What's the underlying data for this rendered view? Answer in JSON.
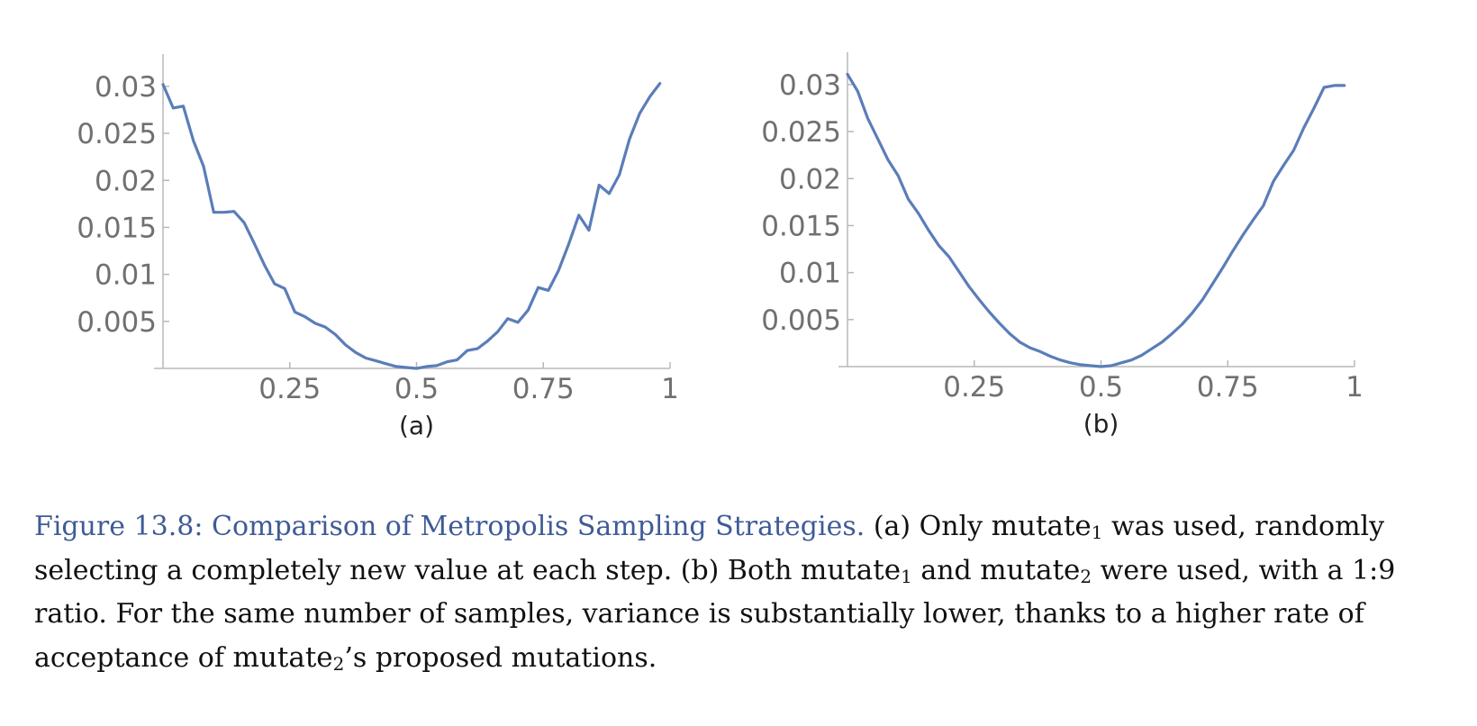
{
  "colors": {
    "line": "#5b7db8",
    "caption_title": "#3f5b96"
  },
  "chart_data": [
    {
      "type": "line",
      "panel_label": "(a)",
      "xlim": [
        0,
        1
      ],
      "ylim": [
        0,
        0.032
      ],
      "x_ticks": [
        {
          "value": 0.25,
          "label": "0.25"
        },
        {
          "value": 0.5,
          "label": "0.5"
        },
        {
          "value": 0.75,
          "label": "0.75"
        },
        {
          "value": 1,
          "label": "1"
        }
      ],
      "y_ticks": [
        {
          "value": 0.005,
          "label": "0.005"
        },
        {
          "value": 0.01,
          "label": "0.01"
        },
        {
          "value": 0.015,
          "label": "0.015"
        },
        {
          "value": 0.02,
          "label": "0.02"
        },
        {
          "value": 0.025,
          "label": "0.025"
        },
        {
          "value": 0.03,
          "label": "0.03"
        }
      ],
      "grid": false,
      "series": [
        {
          "x": [
            0.0,
            0.02,
            0.04,
            0.06,
            0.08,
            0.1,
            0.12,
            0.14,
            0.16,
            0.18,
            0.2,
            0.22,
            0.24,
            0.26,
            0.28,
            0.3,
            0.32,
            0.34,
            0.36,
            0.38,
            0.4,
            0.42,
            0.44,
            0.46,
            0.48,
            0.5,
            0.52,
            0.54,
            0.56,
            0.58,
            0.6,
            0.62,
            0.64,
            0.66,
            0.68,
            0.7,
            0.72,
            0.74,
            0.76,
            0.78,
            0.8,
            0.82,
            0.84,
            0.86,
            0.88,
            0.9,
            0.92,
            0.94,
            0.96,
            0.98
          ],
          "y": [
            0.0302,
            0.0277,
            0.0279,
            0.0242,
            0.0215,
            0.0166,
            0.0166,
            0.0167,
            0.0155,
            0.0133,
            0.011,
            0.009,
            0.0085,
            0.006,
            0.0055,
            0.0048,
            0.0044,
            0.0036,
            0.0025,
            0.0017,
            0.0011,
            0.0008,
            0.0005,
            0.0002,
            0.0001,
            0.0,
            0.0002,
            0.0003,
            0.0007,
            0.0009,
            0.0019,
            0.0021,
            0.0029,
            0.0039,
            0.0053,
            0.0049,
            0.0062,
            0.0086,
            0.0083,
            0.0104,
            0.0132,
            0.0163,
            0.0147,
            0.0195,
            0.0186,
            0.0206,
            0.0244,
            0.0271,
            0.0289,
            0.0303
          ]
        }
      ]
    },
    {
      "type": "line",
      "panel_label": "(b)",
      "xlim": [
        0,
        1
      ],
      "ylim": [
        0,
        0.032
      ],
      "x_ticks": [
        {
          "value": 0.25,
          "label": "0.25"
        },
        {
          "value": 0.5,
          "label": "0.5"
        },
        {
          "value": 0.75,
          "label": "0.75"
        },
        {
          "value": 1,
          "label": "1"
        }
      ],
      "y_ticks": [
        {
          "value": 0.005,
          "label": "0.005"
        },
        {
          "value": 0.01,
          "label": "0.01"
        },
        {
          "value": 0.015,
          "label": "0.015"
        },
        {
          "value": 0.02,
          "label": "0.02"
        },
        {
          "value": 0.025,
          "label": "0.025"
        },
        {
          "value": 0.03,
          "label": "0.03"
        }
      ],
      "grid": false,
      "series": [
        {
          "x": [
            0.0,
            0.02,
            0.04,
            0.06,
            0.08,
            0.1,
            0.12,
            0.14,
            0.16,
            0.18,
            0.2,
            0.22,
            0.24,
            0.26,
            0.28,
            0.3,
            0.32,
            0.34,
            0.36,
            0.38,
            0.4,
            0.42,
            0.44,
            0.46,
            0.48,
            0.5,
            0.52,
            0.54,
            0.56,
            0.58,
            0.6,
            0.62,
            0.64,
            0.66,
            0.68,
            0.7,
            0.72,
            0.74,
            0.76,
            0.78,
            0.8,
            0.82,
            0.84,
            0.86,
            0.88,
            0.9,
            0.92,
            0.94,
            0.96,
            0.98
          ],
          "y": [
            0.0311,
            0.0293,
            0.0264,
            0.0242,
            0.022,
            0.0203,
            0.0178,
            0.0163,
            0.0145,
            0.0129,
            0.0117,
            0.0101,
            0.0085,
            0.0071,
            0.0058,
            0.0046,
            0.0035,
            0.0026,
            0.002,
            0.0016,
            0.0011,
            0.0007,
            0.0004,
            0.0002,
            0.0001,
            0.0,
            0.0001,
            0.0004,
            0.0007,
            0.0012,
            0.0019,
            0.0026,
            0.0035,
            0.0045,
            0.0057,
            0.0071,
            0.0088,
            0.0105,
            0.0123,
            0.014,
            0.0156,
            0.0171,
            0.0197,
            0.0214,
            0.023,
            0.0254,
            0.0275,
            0.0297,
            0.0299,
            0.0299
          ]
        }
      ]
    }
  ],
  "caption": {
    "title": "Figure 13.8: Comparison of Metropolis Sampling Strategies.",
    "s1": " (a) Only ",
    "m1": "mutate",
    "m1_sub": "1",
    "s2": " was used, randomly selecting a completely new value at each step. (b) Both ",
    "m2": "mutate",
    "m2_sub": "1",
    "s3": " and ",
    "m3": "mutate",
    "m3_sub": "2",
    "s4": " were used, with a 1:9 ratio. For the same number of samples, variance is substantially lower, thanks to a higher rate of acceptance of ",
    "m4": "mutate",
    "m4_sub": "2",
    "s5": "’s proposed mutations."
  }
}
